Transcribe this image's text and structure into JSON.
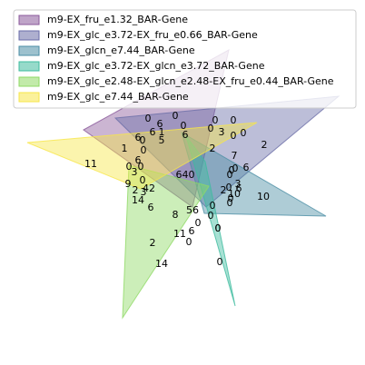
{
  "chart_data": {
    "type": "venn",
    "sets": [
      {
        "name": "m9-EX_fru_e1.32_BAR-Gene",
        "color": "#8b5a9b"
      },
      {
        "name": "m9-EX_glc_e3.72-EX_fru_e0.66_BAR-Gene",
        "color": "#6b6ea8"
      },
      {
        "name": "m9-EX_glcn_e7.44_BAR-Gene",
        "color": "#4c8ea5"
      },
      {
        "name": "m9-EX_glc_e3.72-EX_glcn_e3.72_BAR-Gene",
        "color": "#3fbc9f"
      },
      {
        "name": "m9-EX_glc_e2.48-EX_glcn_e2.48-EX_fru_e0.44_BAR-Gene",
        "color": "#8fd964"
      },
      {
        "name": "m9-EX_glc_e7.44_BAR-Gene",
        "color": "#f7e649"
      }
    ],
    "labels": [
      {
        "text": "0"
      },
      {
        "text": "0"
      },
      {
        "text": "6"
      },
      {
        "text": "0"
      },
      {
        "text": "0"
      },
      {
        "text": "0"
      },
      {
        "text": "6"
      },
      {
        "text": "1"
      },
      {
        "text": "0"
      },
      {
        "text": "3"
      },
      {
        "text": "0"
      },
      {
        "text": "6"
      },
      {
        "text": "5"
      },
      {
        "text": "6"
      },
      {
        "text": "0"
      },
      {
        "text": "0"
      },
      {
        "text": "0"
      },
      {
        "text": "2"
      },
      {
        "text": "2"
      },
      {
        "text": "1"
      },
      {
        "text": "11"
      },
      {
        "text": "0"
      },
      {
        "text": "7"
      },
      {
        "text": "6"
      },
      {
        "text": "0"
      },
      {
        "text": "0"
      },
      {
        "text": "0"
      },
      {
        "text": "6"
      },
      {
        "text": "3"
      },
      {
        "text": "0"
      },
      {
        "text": "640"
      },
      {
        "text": "0"
      },
      {
        "text": "3"
      },
      {
        "text": "0"
      },
      {
        "text": "9"
      },
      {
        "text": "2"
      },
      {
        "text": "42"
      },
      {
        "text": "2"
      },
      {
        "text": "10"
      },
      {
        "text": "6"
      },
      {
        "text": "10"
      },
      {
        "text": "3"
      },
      {
        "text": "0"
      },
      {
        "text": "0"
      },
      {
        "text": "14"
      },
      {
        "text": "6"
      },
      {
        "text": "0"
      },
      {
        "text": "0"
      },
      {
        "text": "56"
      },
      {
        "text": "8"
      },
      {
        "text": "0"
      },
      {
        "text": "0"
      },
      {
        "text": "6"
      },
      {
        "text": "0"
      },
      {
        "text": "11"
      },
      {
        "text": "0"
      },
      {
        "text": "2"
      },
      {
        "text": "14"
      },
      {
        "text": "0"
      }
    ]
  }
}
